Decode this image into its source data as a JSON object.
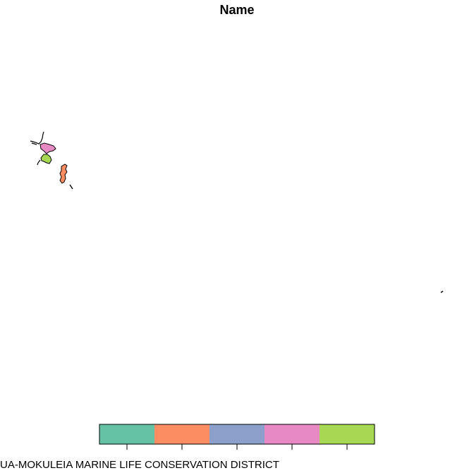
{
  "map": {
    "title": "Name"
  },
  "legend": {
    "colors": [
      "#66c2a5",
      "#fc8d62",
      "#8da0cb",
      "#e78ac3",
      "#a6d854"
    ],
    "visible_label": "UA-MOKULEIA MARINE LIFE CONSERVATION DISTRICT"
  },
  "features": [
    {
      "name": "pink-district",
      "color": "#e78ac3"
    },
    {
      "name": "green-district",
      "color": "#a6d854"
    },
    {
      "name": "orange-district",
      "color": "#fc8d62"
    }
  ]
}
